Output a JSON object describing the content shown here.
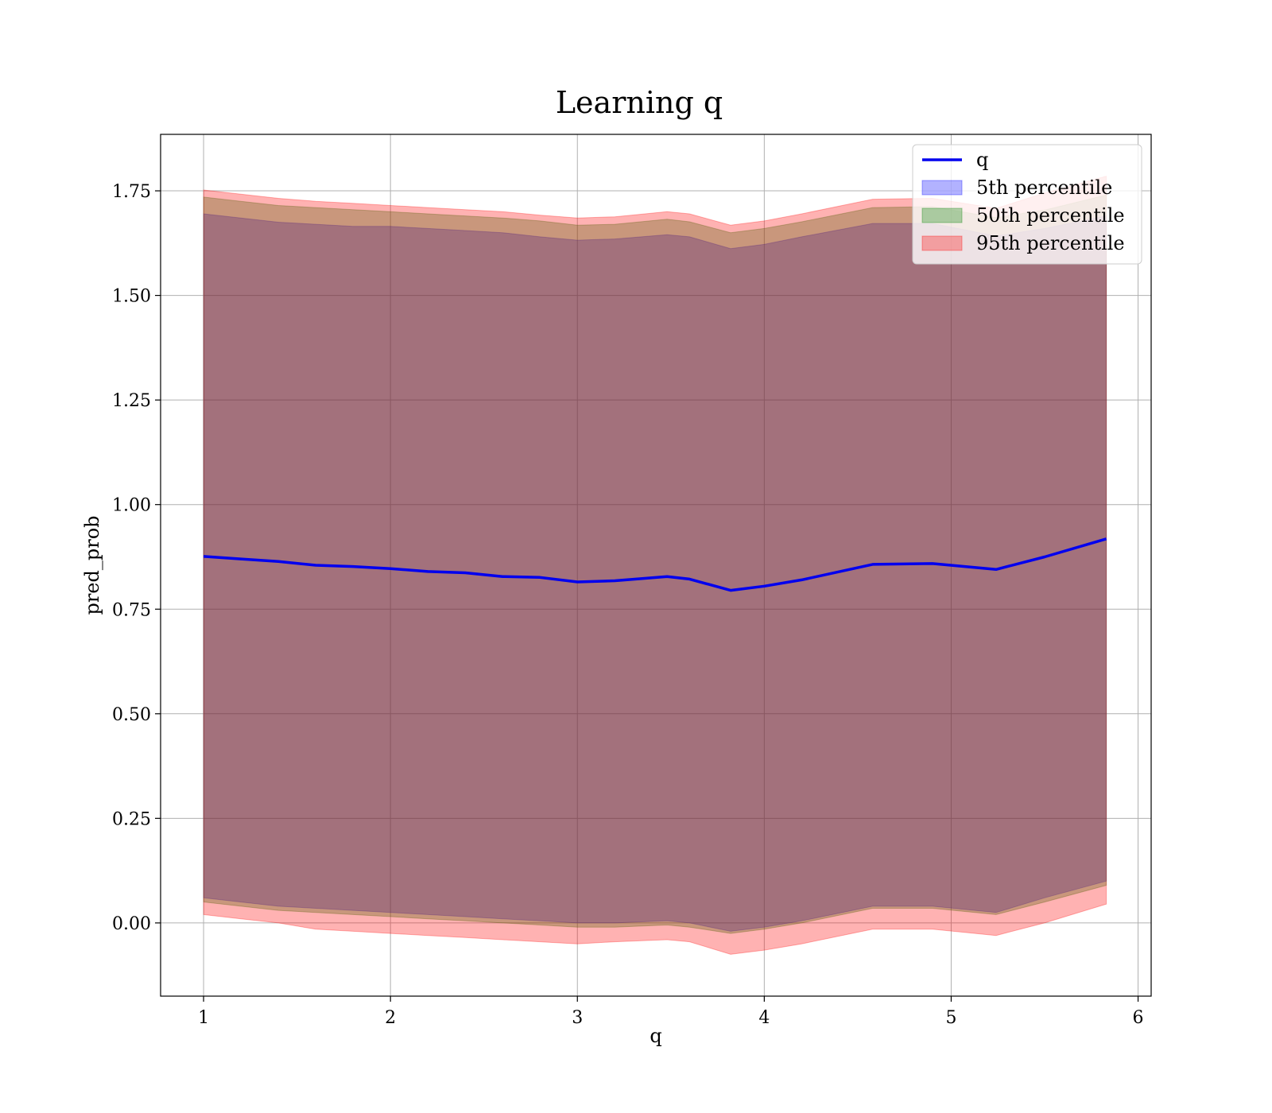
{
  "chart_data": {
    "type": "area",
    "title": "Learning q",
    "xlabel": "q",
    "ylabel": "pred_prob",
    "xlim": [
      0.77,
      6.07
    ],
    "ylim": [
      -0.175,
      1.885
    ],
    "xticks": [
      "1",
      "2",
      "3",
      "4",
      "5",
      "6"
    ],
    "yticks": [
      "0.00",
      "0.25",
      "0.50",
      "0.75",
      "1.00",
      "1.25",
      "1.50",
      "1.75"
    ],
    "grid": true,
    "legend_position": "top-right",
    "x": [
      1.0,
      1.2,
      1.4,
      1.6,
      1.8,
      2.0,
      2.2,
      2.4,
      2.6,
      2.8,
      3.0,
      3.2,
      3.48,
      3.6,
      3.82,
      4.0,
      4.2,
      4.58,
      4.9,
      5.24,
      5.5,
      5.83
    ],
    "series": [
      {
        "name": "q",
        "kind": "line",
        "color": "#0000ee",
        "values": [
          0.876,
          0.87,
          0.864,
          0.855,
          0.852,
          0.847,
          0.84,
          0.837,
          0.828,
          0.826,
          0.815,
          0.818,
          0.828,
          0.822,
          0.795,
          0.805,
          0.82,
          0.857,
          0.859,
          0.845,
          0.875,
          0.918
        ]
      },
      {
        "name": "5th percentile",
        "kind": "band",
        "color": "#0000ff",
        "lower": [
          0.06,
          0.05,
          0.04,
          0.035,
          0.03,
          0.025,
          0.02,
          0.015,
          0.01,
          0.005,
          0.0,
          0.0,
          0.005,
          0.0,
          -0.02,
          -0.01,
          0.005,
          0.04,
          0.04,
          0.025,
          0.06,
          0.1
        ],
        "upper": [
          1.695,
          1.685,
          1.675,
          1.67,
          1.665,
          1.665,
          1.66,
          1.655,
          1.65,
          1.64,
          1.632,
          1.635,
          1.645,
          1.64,
          1.612,
          1.622,
          1.64,
          1.672,
          1.672,
          1.642,
          1.66,
          1.69
        ]
      },
      {
        "name": "50th percentile",
        "kind": "band",
        "color": "#008000",
        "lower": [
          0.05,
          0.04,
          0.03,
          0.025,
          0.02,
          0.015,
          0.01,
          0.005,
          0.0,
          -0.005,
          -0.01,
          -0.01,
          -0.005,
          -0.01,
          -0.025,
          -0.015,
          0.0,
          0.035,
          0.035,
          0.02,
          0.05,
          0.09
        ],
        "upper": [
          1.735,
          1.725,
          1.715,
          1.71,
          1.705,
          1.7,
          1.695,
          1.69,
          1.685,
          1.678,
          1.668,
          1.67,
          1.682,
          1.676,
          1.65,
          1.66,
          1.676,
          1.71,
          1.712,
          1.686,
          1.704,
          1.74
        ]
      },
      {
        "name": "95th percentile",
        "kind": "band",
        "color": "#ff0000",
        "lower": [
          0.02,
          0.01,
          0.0,
          -0.015,
          -0.02,
          -0.025,
          -0.03,
          -0.035,
          -0.04,
          -0.045,
          -0.05,
          -0.045,
          -0.04,
          -0.045,
          -0.075,
          -0.065,
          -0.05,
          -0.015,
          -0.015,
          -0.03,
          0.0,
          0.045
        ],
        "upper": [
          1.752,
          1.742,
          1.732,
          1.725,
          1.72,
          1.715,
          1.71,
          1.705,
          1.7,
          1.692,
          1.685,
          1.688,
          1.7,
          1.695,
          1.668,
          1.678,
          1.695,
          1.73,
          1.732,
          1.708,
          1.745,
          1.785
        ]
      }
    ]
  }
}
